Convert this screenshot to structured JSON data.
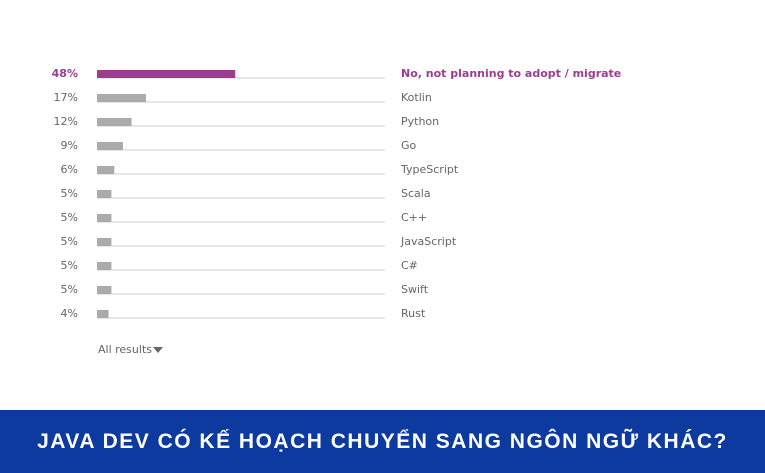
{
  "chart_data": {
    "type": "bar",
    "orientation": "horizontal",
    "title": "JAVA DEV CÓ KẾ HOẠCH CHUYỂN SANG NGÔN NGỮ KHÁC?",
    "categories": [
      "No, not planning to adopt / migrate",
      "Kotlin",
      "Python",
      "Go",
      "TypeScript",
      "Scala",
      "C++",
      "JavaScript",
      "C#",
      "Swift",
      "Rust"
    ],
    "values": [
      48,
      17,
      12,
      9,
      6,
      5,
      5,
      5,
      5,
      5,
      4
    ],
    "value_labels": [
      "48%",
      "17%",
      "12%",
      "9%",
      "6%",
      "5%",
      "5%",
      "5%",
      "5%",
      "5%",
      "4%"
    ],
    "colors": [
      "#9c3d8f",
      "#aaaaaa",
      "#aaaaaa",
      "#aaaaaa",
      "#aaaaaa",
      "#aaaaaa",
      "#aaaaaa",
      "#aaaaaa",
      "#aaaaaa",
      "#aaaaaa",
      "#aaaaaa"
    ],
    "xlim": [
      0,
      100
    ],
    "link": "All results"
  }
}
